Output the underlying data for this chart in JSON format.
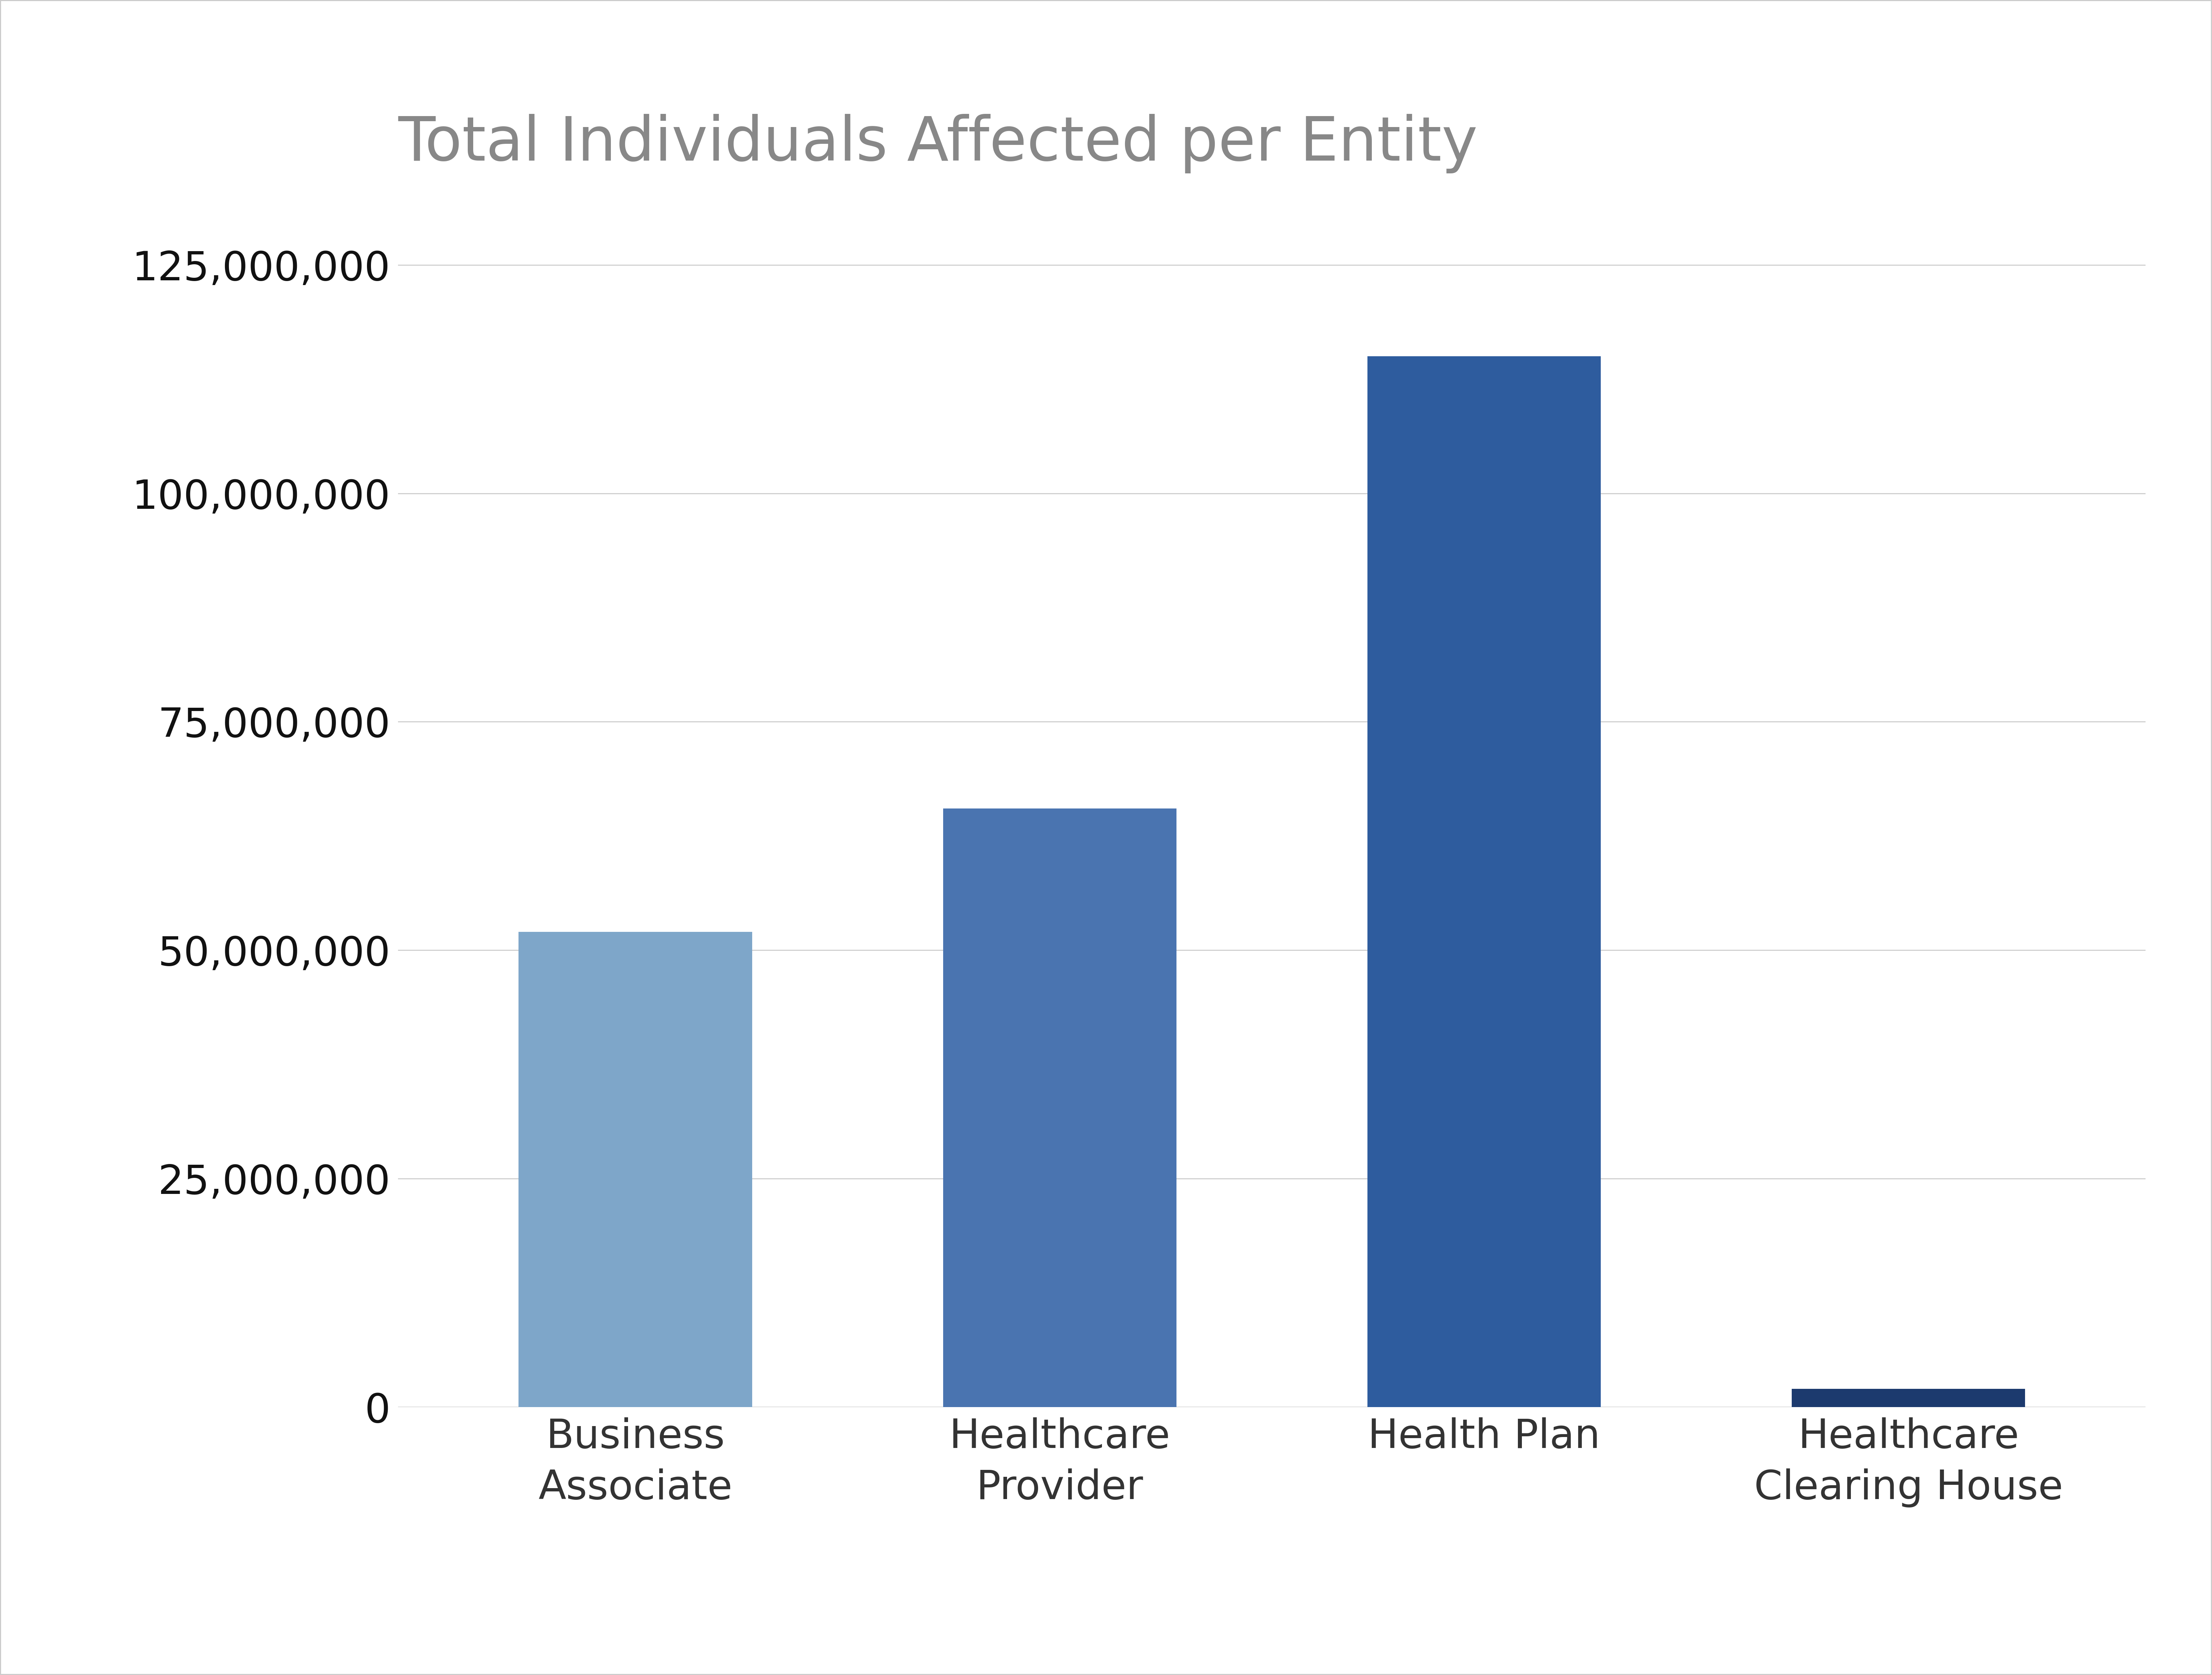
{
  "title": "Total Individuals Affected per Entity",
  "categories": [
    "Business\nAssociate",
    "Healthcare\nProvider",
    "Health Plan",
    "Healthcare\nClearing House"
  ],
  "values": [
    52000000,
    65500000,
    115000000,
    2000000
  ],
  "bar_colors": [
    "#7ea6c9",
    "#4a74b0",
    "#2e5c9e",
    "#1c3a6e"
  ],
  "background_color": "#ffffff",
  "title_color": "#888888",
  "title_fontsize": 120,
  "ytick_fontsize": 80,
  "xtick_fontsize": 80,
  "ylim": [
    0,
    132000000
  ],
  "yticks": [
    0,
    25000000,
    50000000,
    75000000,
    100000000,
    125000000
  ],
  "grid_color": "#cccccc",
  "grid_linewidth": 2.0,
  "bar_width": 0.55,
  "border_color": "#aaaaaa",
  "border_linewidth": 3
}
